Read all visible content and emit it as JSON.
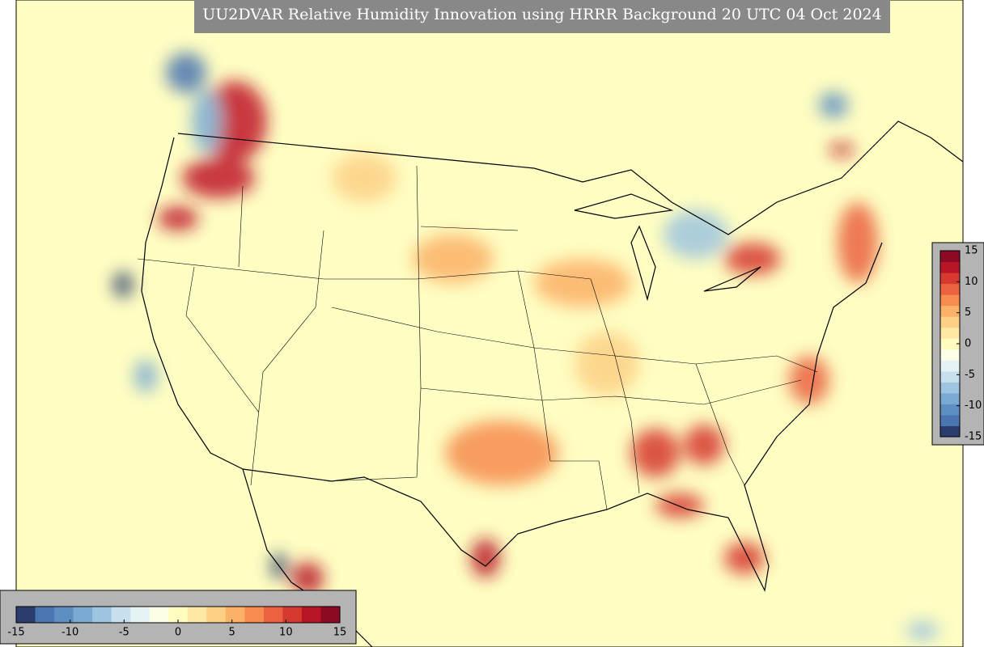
{
  "header": {
    "title": "UU2DVAR Relative Humidity Innovation using HRRR Background 20 UTC 04 Oct 2024"
  },
  "colorbar": {
    "range": [
      -15,
      15
    ],
    "ticks": [
      -15,
      -10,
      -5,
      0,
      5,
      10,
      15
    ],
    "colors": [
      "#2b3d6c",
      "#4b76b2",
      "#5d8fc3",
      "#7aaad3",
      "#9ec5df",
      "#c6e0ee",
      "#e6f3f5",
      "#fbfde4",
      "#fefdc0",
      "#fee8a4",
      "#fdd086",
      "#fcb168",
      "#f78c50",
      "#ea623f",
      "#d6392d",
      "#b81626",
      "#8c0a23"
    ]
  }
}
